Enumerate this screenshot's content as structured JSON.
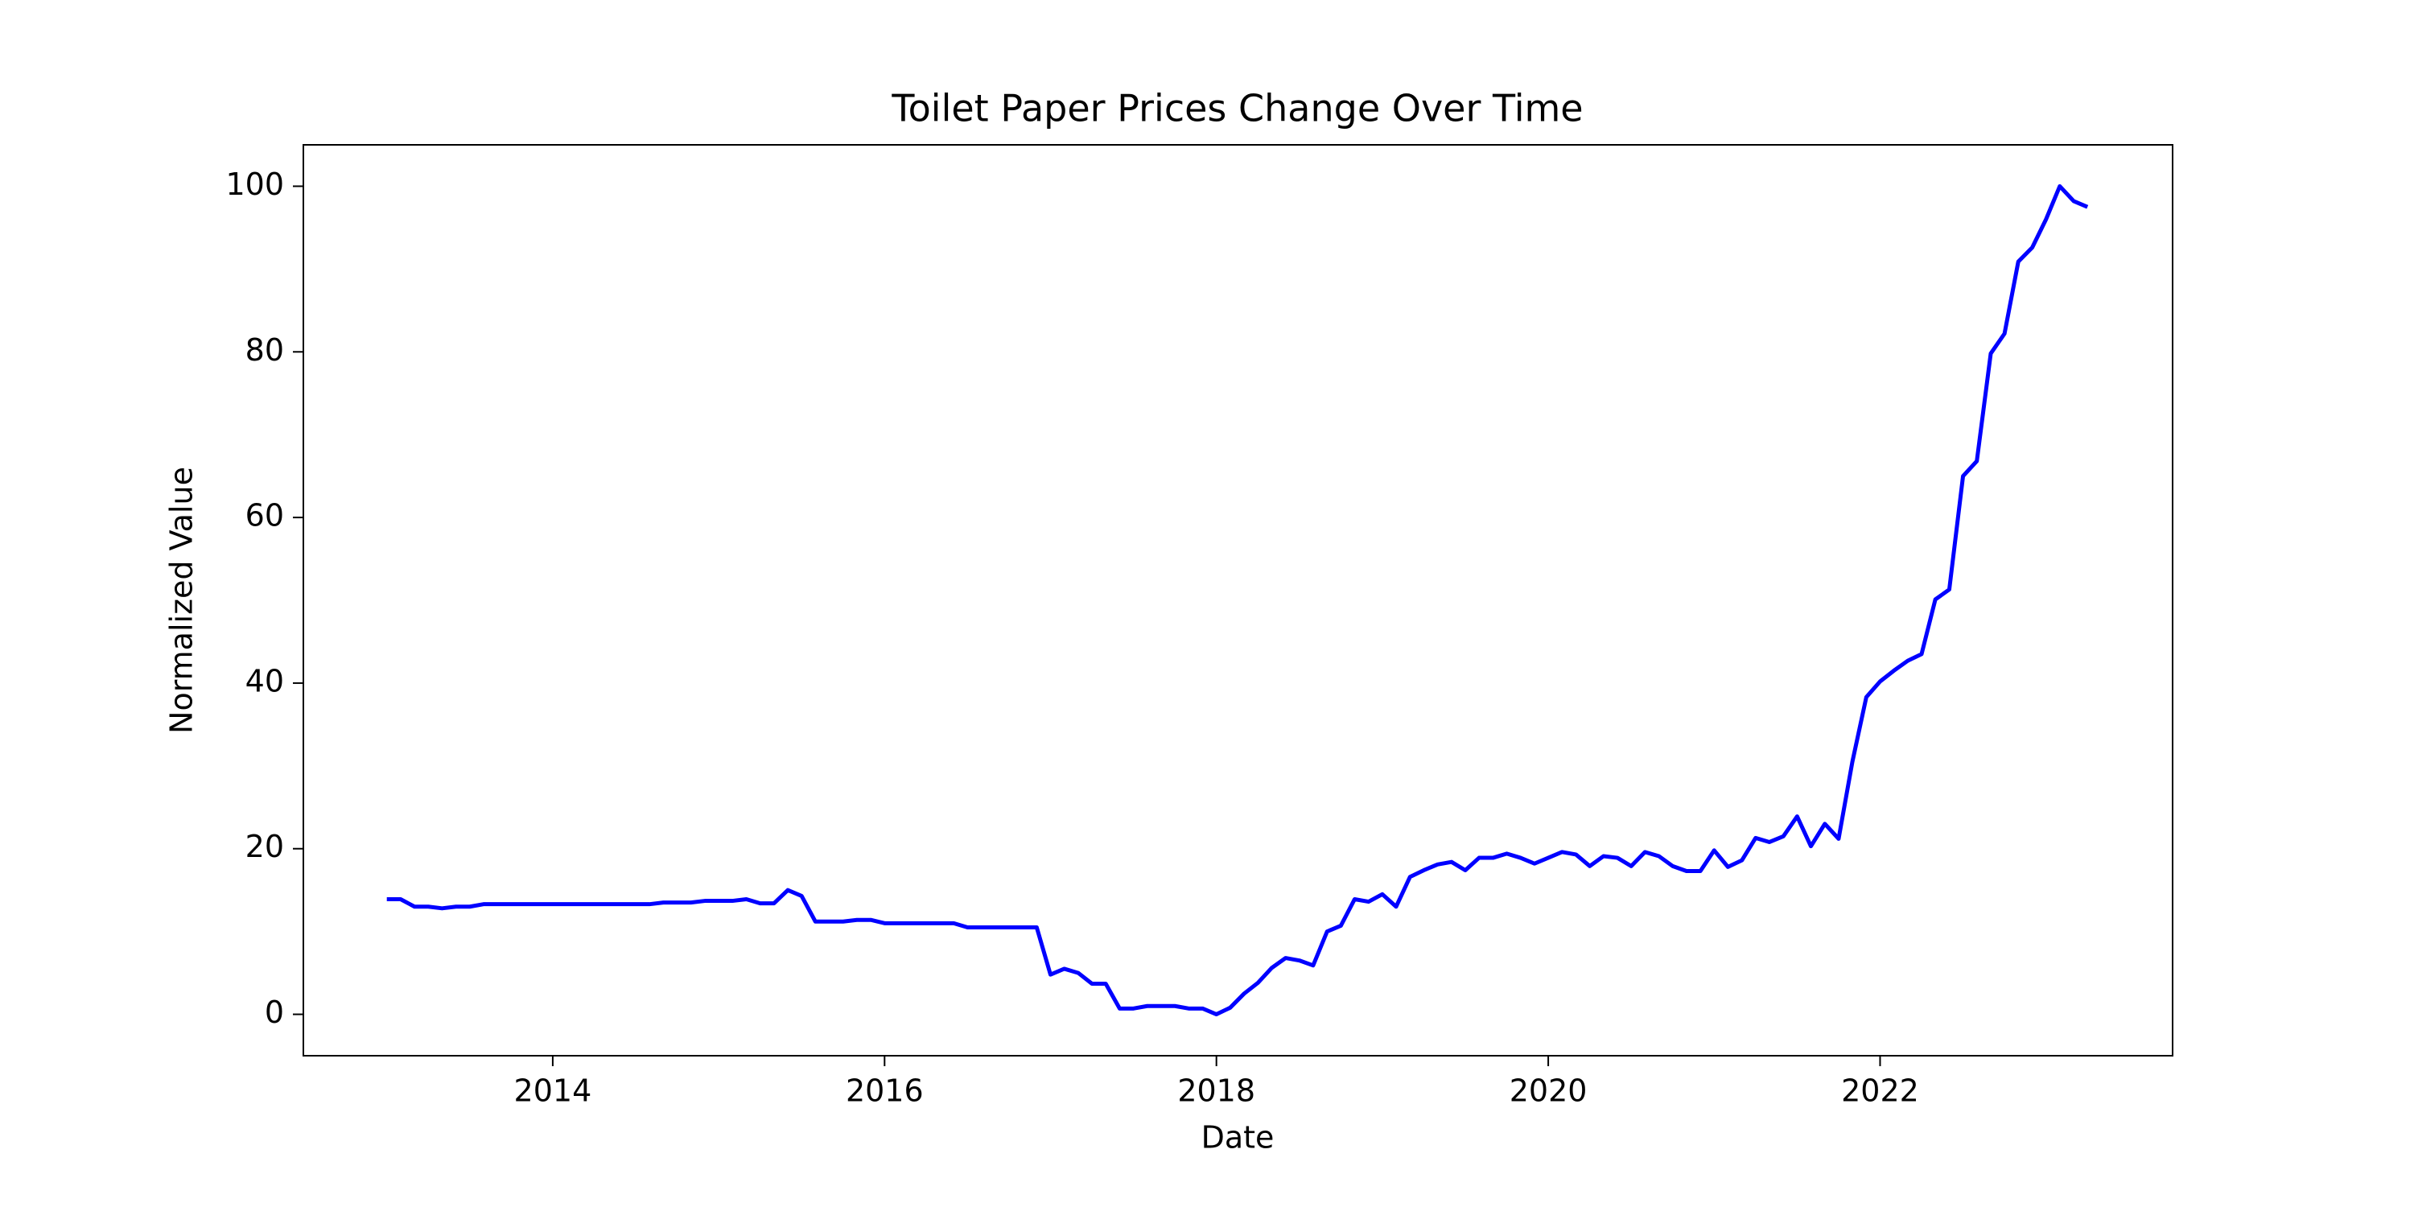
{
  "chart_data": {
    "type": "line",
    "title": "Toilet Paper Prices Change Over Time",
    "x_label": "Date",
    "y_label": "Normalized Value",
    "x": [
      2013.0,
      2013.083,
      2013.167,
      2013.25,
      2013.333,
      2013.417,
      2013.5,
      2013.583,
      2013.667,
      2013.75,
      2013.833,
      2013.917,
      2014.0,
      2014.083,
      2014.167,
      2014.25,
      2014.333,
      2014.417,
      2014.5,
      2014.583,
      2014.667,
      2014.75,
      2014.833,
      2014.917,
      2015.0,
      2015.083,
      2015.167,
      2015.25,
      2015.333,
      2015.417,
      2015.5,
      2015.583,
      2015.667,
      2015.75,
      2015.833,
      2015.917,
      2016.0,
      2016.083,
      2016.167,
      2016.25,
      2016.333,
      2016.417,
      2016.5,
      2016.583,
      2016.667,
      2016.75,
      2016.833,
      2016.917,
      2017.0,
      2017.083,
      2017.167,
      2017.25,
      2017.333,
      2017.417,
      2017.5,
      2017.583,
      2017.667,
      2017.75,
      2017.833,
      2017.917,
      2018.0,
      2018.083,
      2018.167,
      2018.25,
      2018.333,
      2018.417,
      2018.5,
      2018.583,
      2018.667,
      2018.75,
      2018.833,
      2018.917,
      2019.0,
      2019.083,
      2019.167,
      2019.25,
      2019.333,
      2019.417,
      2019.5,
      2019.583,
      2019.667,
      2019.75,
      2019.833,
      2019.917,
      2020.0,
      2020.083,
      2020.167,
      2020.25,
      2020.333,
      2020.417,
      2020.5,
      2020.583,
      2020.667,
      2020.75,
      2020.833,
      2020.917,
      2021.0,
      2021.083,
      2021.167,
      2021.25,
      2021.333,
      2021.417,
      2021.5,
      2021.583,
      2021.667,
      2021.75,
      2021.833,
      2021.917,
      2022.0,
      2022.083,
      2022.167,
      2022.25,
      2022.333,
      2022.417,
      2022.5,
      2022.583,
      2022.667,
      2022.75,
      2022.833,
      2022.917,
      2023.0,
      2023.083,
      2023.167,
      2023.25
    ],
    "series": [
      {
        "name": "Toilet Paper",
        "color": "#0000ff",
        "values": [
          13.9,
          13.9,
          13.0,
          13.0,
          12.8,
          13.0,
          13.0,
          13.3,
          13.3,
          13.3,
          13.3,
          13.3,
          13.3,
          13.3,
          13.3,
          13.3,
          13.3,
          13.3,
          13.3,
          13.3,
          13.5,
          13.5,
          13.5,
          13.7,
          13.7,
          13.7,
          13.9,
          13.4,
          13.4,
          15.0,
          14.3,
          11.2,
          11.2,
          11.2,
          11.4,
          11.4,
          11.0,
          11.0,
          11.0,
          11.0,
          11.0,
          11.0,
          10.5,
          10.5,
          10.5,
          10.5,
          10.5,
          10.5,
          4.8,
          5.5,
          5.0,
          3.7,
          3.7,
          0.7,
          0.7,
          1.0,
          1.0,
          1.0,
          0.7,
          0.7,
          0.0,
          0.8,
          2.5,
          3.8,
          5.6,
          6.8,
          6.5,
          5.9,
          10.0,
          10.7,
          13.9,
          13.6,
          14.5,
          13.0,
          16.6,
          17.4,
          18.1,
          18.4,
          17.4,
          18.9,
          18.9,
          19.4,
          18.9,
          18.2,
          18.9,
          19.6,
          19.3,
          17.9,
          19.1,
          18.9,
          17.9,
          19.6,
          19.1,
          17.9,
          17.3,
          17.3,
          19.8,
          17.8,
          18.6,
          21.3,
          20.8,
          21.5,
          23.9,
          20.3,
          23.0,
          21.2,
          30.5,
          38.3,
          40.2,
          41.5,
          42.7,
          43.5,
          50.1,
          51.3,
          65.0,
          66.8,
          79.8,
          82.2,
          90.9,
          92.6,
          96.0,
          100.0,
          98.2,
          97.5
        ]
      }
    ],
    "xlim": [
      2012.497,
      2023.763
    ],
    "ylim": [
      -5,
      105
    ],
    "xticks": [
      2014,
      2016,
      2018,
      2020,
      2022
    ],
    "yticks": [
      0,
      20,
      40,
      60,
      80,
      100
    ],
    "grid": false,
    "legend": false
  }
}
